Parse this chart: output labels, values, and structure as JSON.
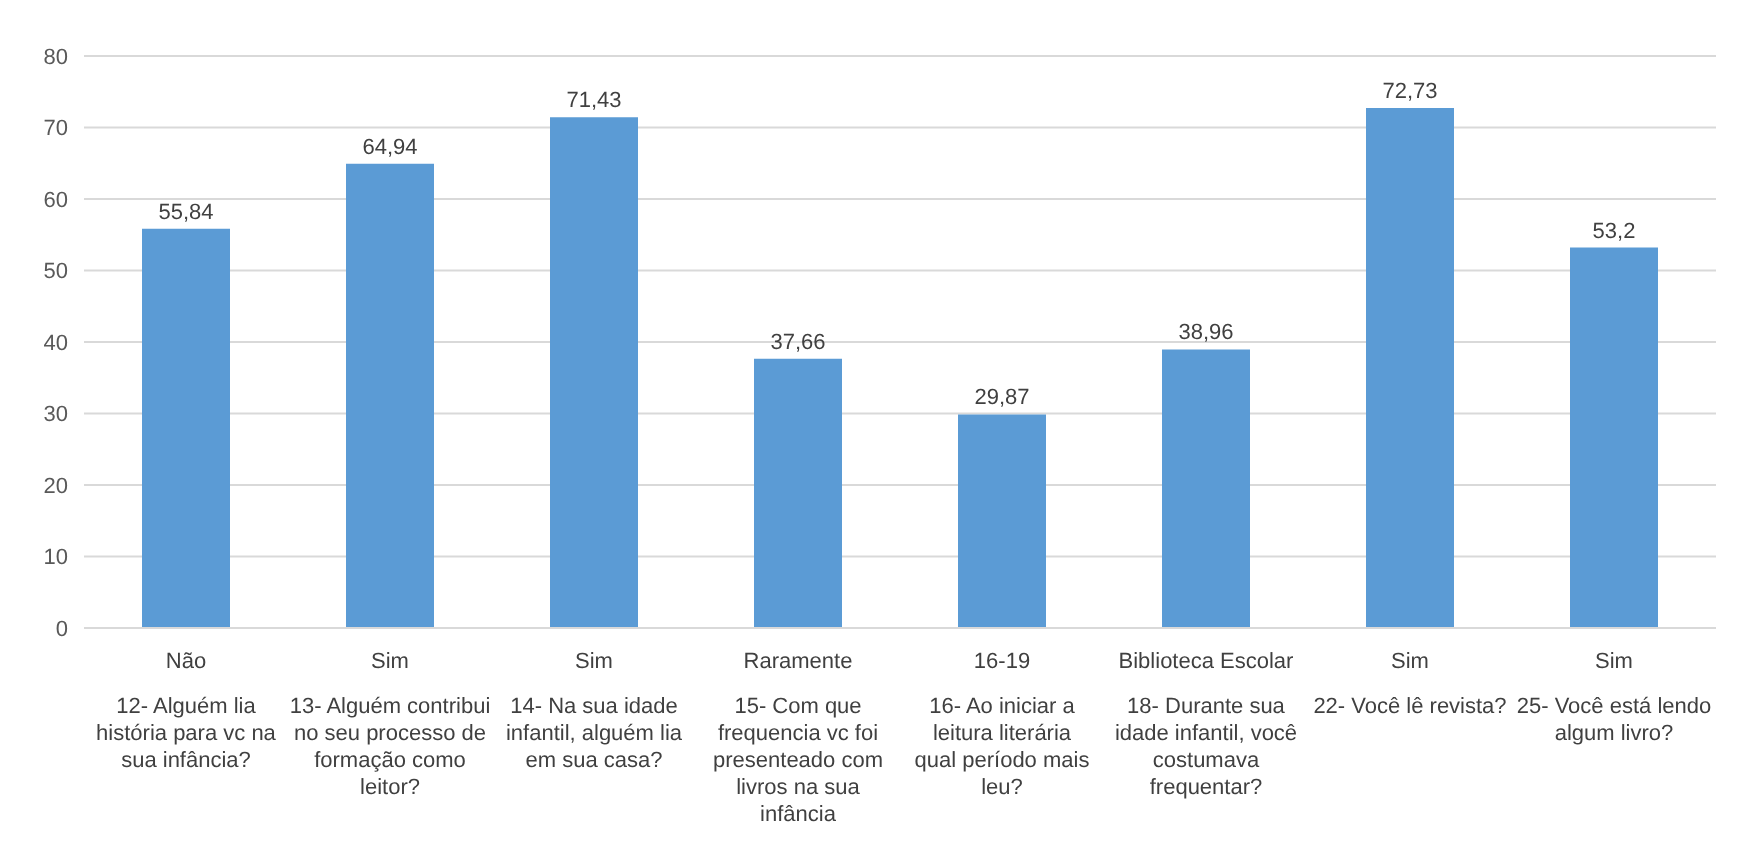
{
  "chart_data": {
    "type": "bar",
    "categories": [
      "Não\n12- Alguém lia história para vc na sua infância?",
      "Sim\n13- Alguém contribui no seu processo de formação como leitor?",
      "Sim\n14- Na sua idade infantil, alguém lia em sua casa?",
      "Raramente\n15- Com que frequencia vc foi presenteado com livros na sua infância",
      "16-19\n16- Ao iniciar a leitura literária qual período mais leu?",
      "Biblioteca Escolar\n18- Durante sua idade infantil, você costumava frequentar?",
      "Sim\n22- Você lê revista?",
      "Sim\n25-  Você está lendo algum livro?"
    ],
    "values": [
      55.84,
      64.94,
      71.43,
      37.66,
      29.87,
      38.96,
      72.73,
      53.2
    ],
    "value_labels": [
      "55,84",
      "64,94",
      "71,43",
      "37,66",
      "29,87",
      "38,96",
      "72,73",
      "53,2"
    ],
    "color": "#5b9bd5",
    "ylim": [
      0,
      80
    ],
    "yticks": [
      0,
      10,
      20,
      30,
      40,
      50,
      60,
      70,
      80
    ],
    "grid": "y"
  }
}
